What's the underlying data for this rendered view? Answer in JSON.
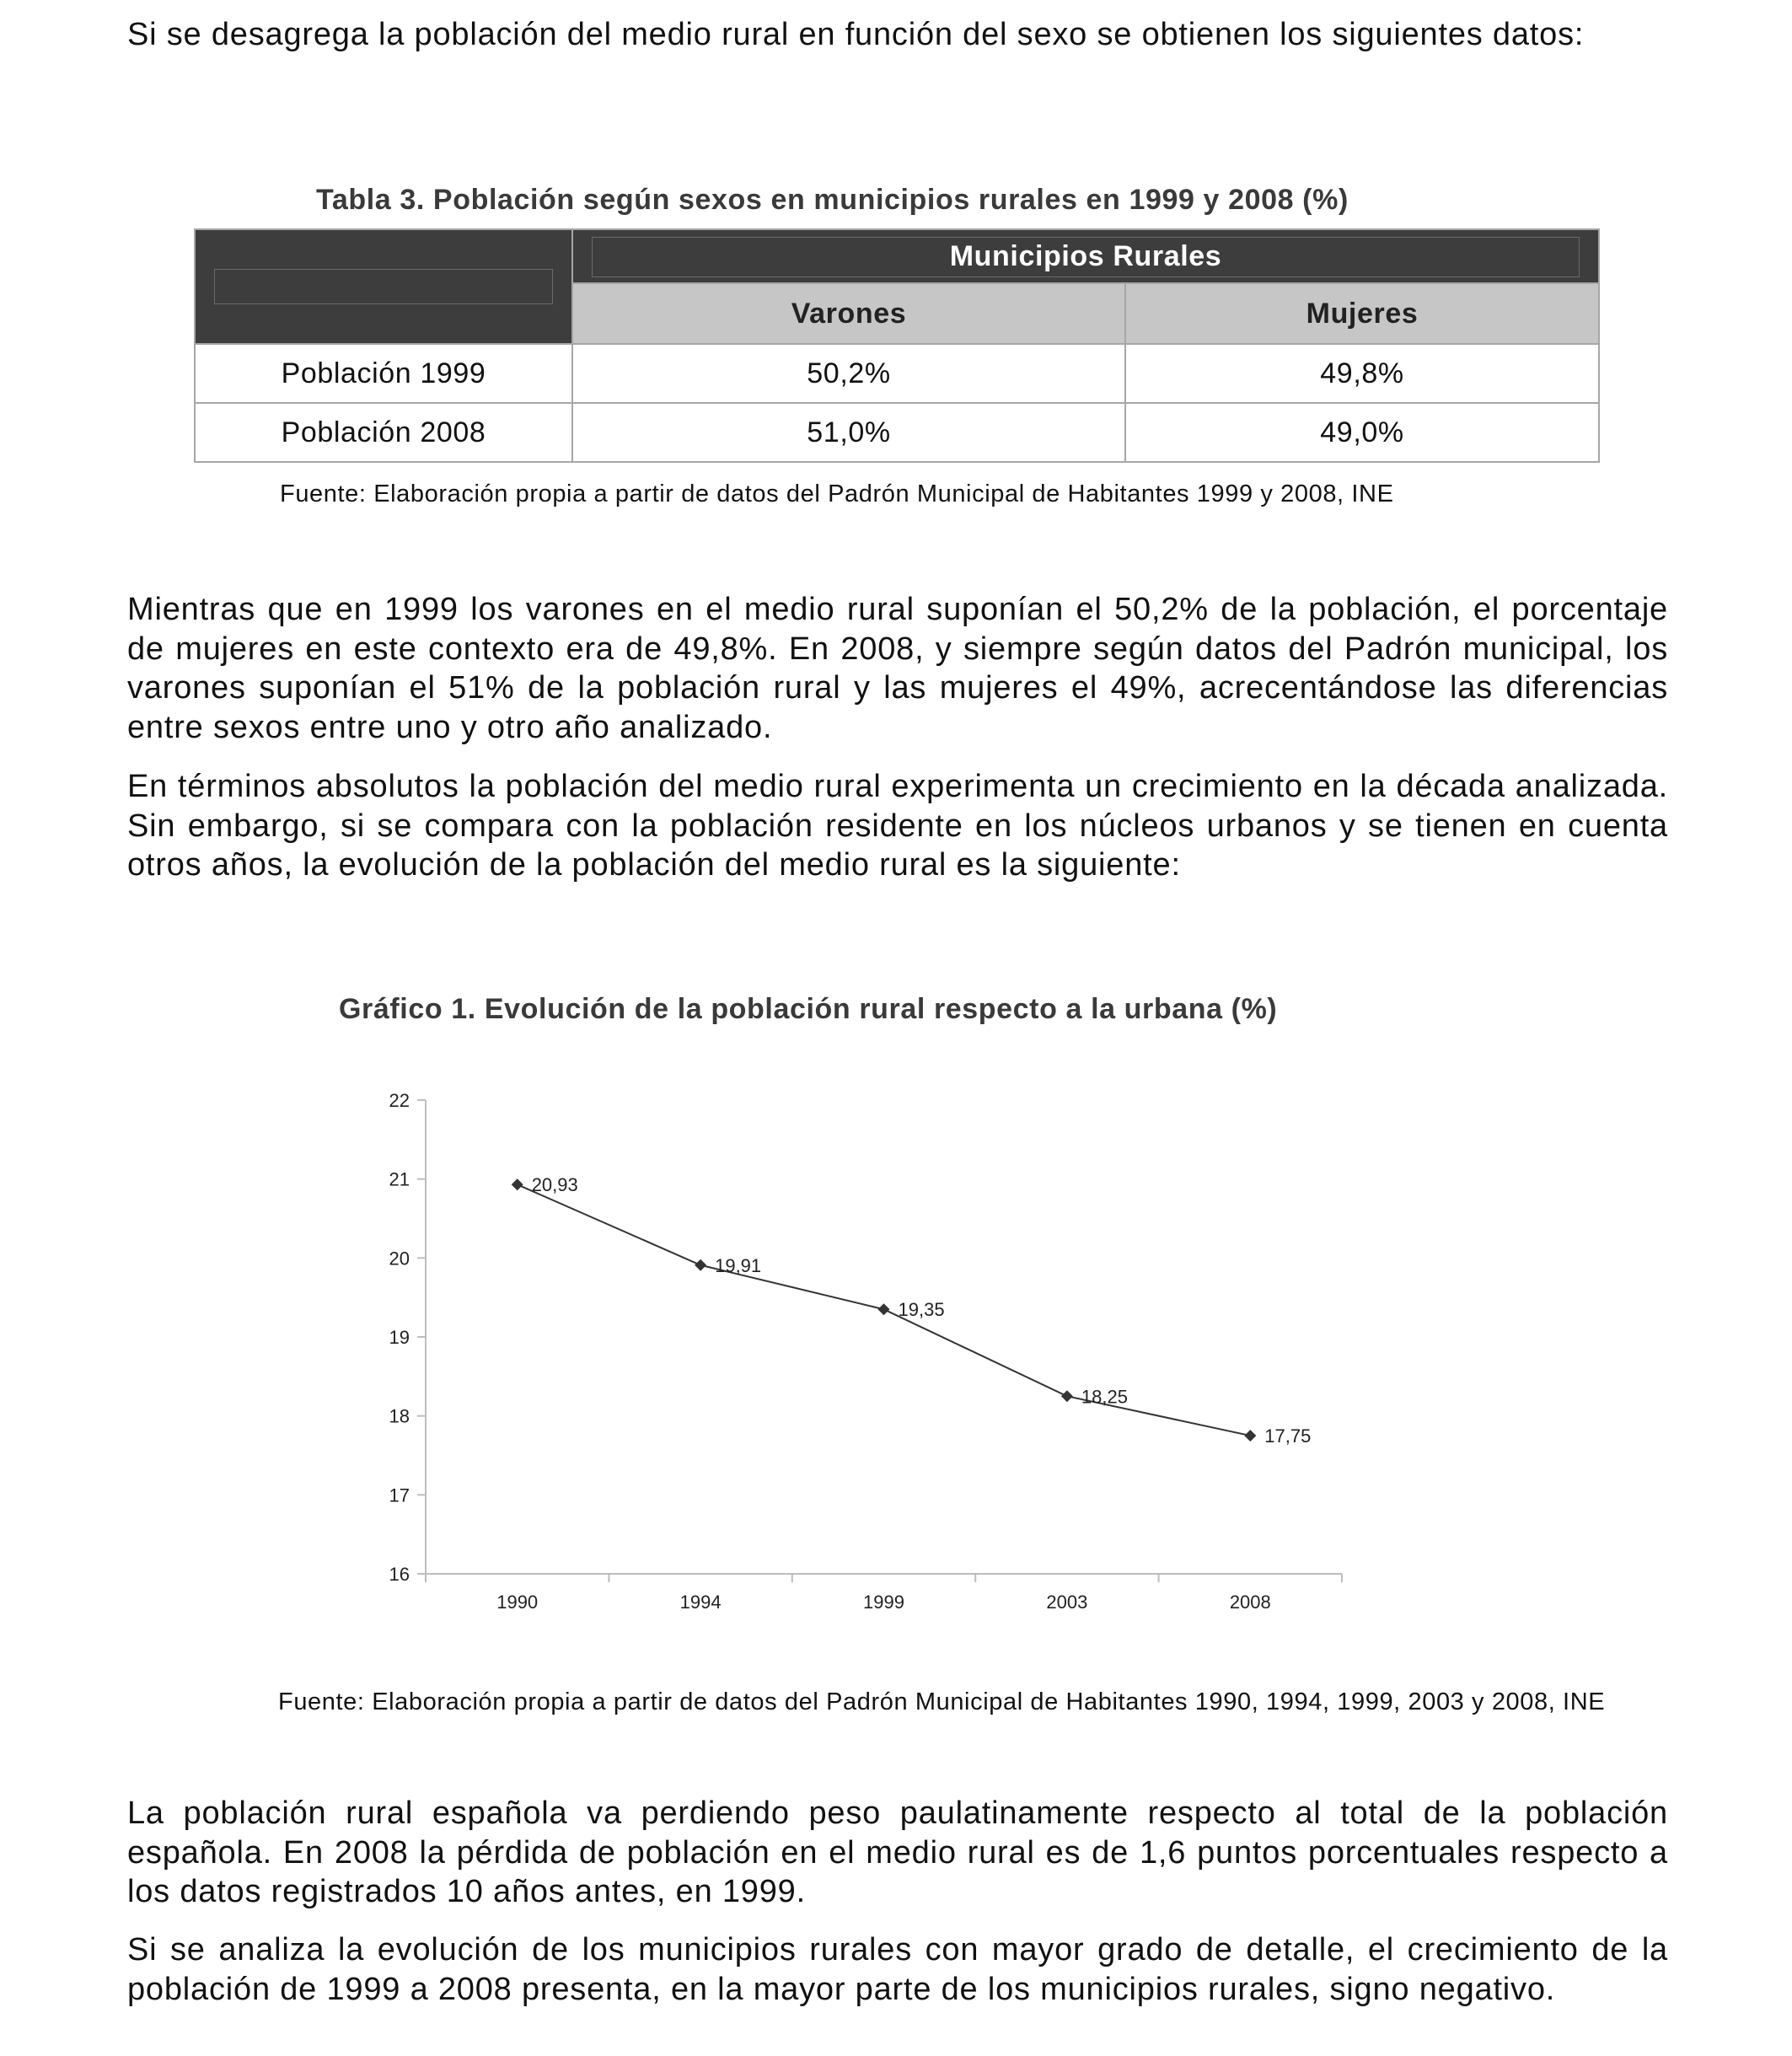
{
  "paragraphs": {
    "p1": "Si se desagrega la población del medio rural en función del sexo se obtienen los siguientes datos:",
    "p2": "Mientras que en 1999 los varones en el medio rural suponían el 50,2% de la población, el porcentaje de mujeres en este contexto era de 49,8%. En 2008, y siempre según datos del Padrón municipal, los varones suponían el 51% de la población rural y las mujeres el 49%, acrecentándose las diferencias entre sexos entre uno y otro año analizado.",
    "p3": "En términos absolutos la población del medio rural experimenta un crecimiento en la década analizada. Sin embargo, si se compara con la población residente en los núcleos urbanos y se tienen en cuenta otros años, la evolución de la población del medio rural es la siguiente:",
    "p4": "La población rural española va perdiendo peso paulatinamente respecto al total de la población española. En 2008 la pérdida de población en el medio rural es de 1,6 puntos porcentuales respecto a los datos registrados 10 años antes, en 1999.",
    "p5": "Si se analiza la evolución de los municipios rurales con mayor grado de detalle, el crecimiento de la población de 1999 a 2008 presenta, en la mayor parte de los municipios rurales, signo negativo."
  },
  "table3": {
    "title": "Tabla 3. Población según sexos en municipios rurales en 1999 y 2008 (%)",
    "group_header": "Municipios Rurales",
    "columns": [
      "Varones",
      "Mujeres"
    ],
    "rows": [
      {
        "label": "Población 1999",
        "values": [
          "50,2%",
          "49,8%"
        ]
      },
      {
        "label": "Población 2008",
        "values": [
          "51,0%",
          "49,0%"
        ]
      }
    ],
    "source": "Fuente: Elaboración propia a partir de datos del Padrón Municipal de Habitantes 1999 y 2008, INE"
  },
  "chart1": {
    "title": "Gráfico 1. Evolución de la población rural respecto a la urbana (%)",
    "source": "Fuente: Elaboración propia a partir de datos del Padrón Municipal de Habitantes 1990, 1994, 1999, 2003 y 2008, INE"
  },
  "chart_data": {
    "type": "line",
    "title": "Gráfico 1. Evolución de la población rural respecto a la urbana (%)",
    "categories": [
      "1990",
      "1994",
      "1999",
      "2003",
      "2008"
    ],
    "series": [
      {
        "values": [
          20.93,
          19.91,
          19.35,
          18.25,
          17.75
        ]
      }
    ],
    "data_labels": [
      "20,93",
      "19,91",
      "19,35",
      "18,25",
      "17,75"
    ],
    "yticks": [
      "16",
      "17",
      "18",
      "19",
      "20",
      "21",
      "22"
    ],
    "ylim": [
      16,
      22
    ],
    "xlabel": "",
    "ylabel": "",
    "grid": false,
    "legend": "none",
    "line_color": "#333333",
    "marker": "diamond"
  }
}
